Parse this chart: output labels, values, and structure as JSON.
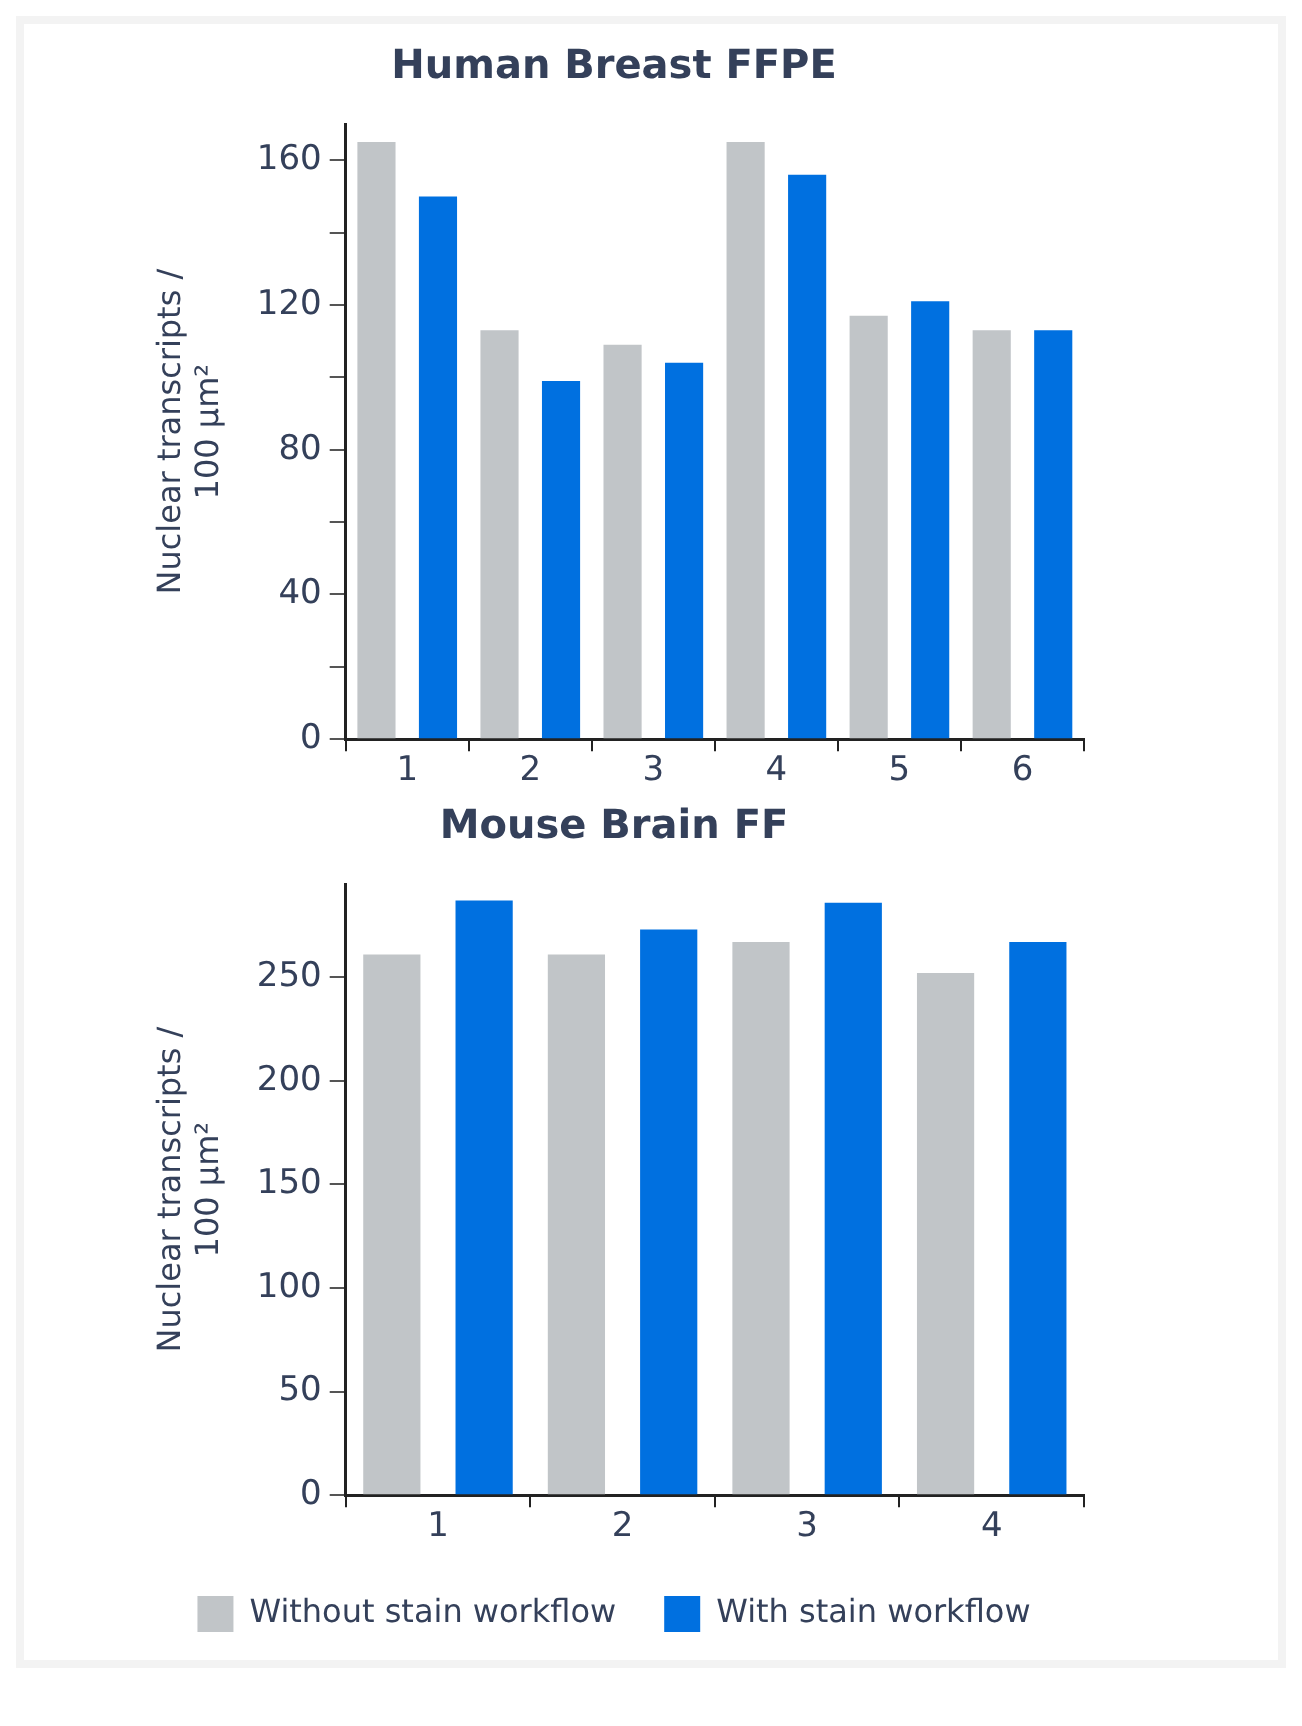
{
  "chart_data": [
    {
      "type": "bar",
      "title": "Human Breast FFPE",
      "ylabel": "Nuclear transcripts / 100 μm²",
      "categories": [
        "1",
        "2",
        "3",
        "4",
        "5",
        "6"
      ],
      "series": [
        {
          "color": "#c1c5c8",
          "values": [
            165,
            113,
            109,
            165,
            117,
            113
          ]
        },
        {
          "color": "#0070e0",
          "values": [
            150,
            99,
            104,
            156,
            121,
            113
          ]
        }
      ],
      "ylim": [
        0,
        170
      ],
      "yticks": [
        0,
        {
          "value": 20,
          "label": null
        },
        40,
        {
          "value": 60,
          "label": null
        },
        80,
        {
          "value": 100,
          "label": null
        },
        120,
        {
          "value": 140,
          "label": null
        },
        160
      ],
      "grid": false,
      "legend": false
    },
    {
      "type": "bar",
      "title": "Mouse Brain FF",
      "ylabel": "Nuclear transcripts / 100 μm²",
      "categories": [
        "1",
        "2",
        "3",
        "4"
      ],
      "series": [
        {
          "name": "Without stain workflow",
          "color": "#c1c5c8",
          "values": [
            261,
            261,
            267,
            252
          ]
        },
        {
          "name": "With stain workflow",
          "color": "#0070e0",
          "values": [
            287,
            273,
            286,
            267
          ]
        }
      ],
      "ylim": [
        0,
        295
      ],
      "yticks": [
        0,
        50,
        100,
        150,
        200,
        250
      ],
      "grid": false,
      "legend": "bottom"
    }
  ]
}
